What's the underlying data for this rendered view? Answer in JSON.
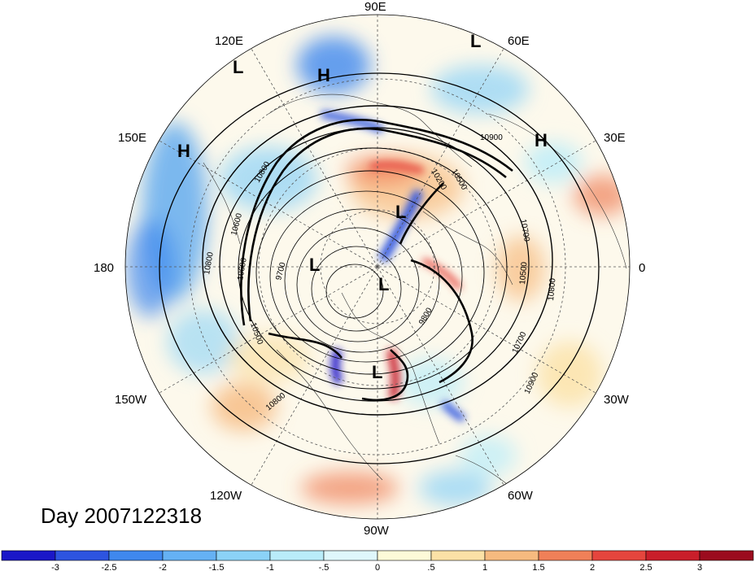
{
  "map": {
    "projection": "polar stereographic (north pole)",
    "longitude_labels": [
      {
        "text": "90E",
        "lon": 90
      },
      {
        "text": "60E",
        "lon": 60
      },
      {
        "text": "30E",
        "lon": 30
      },
      {
        "text": "0",
        "lon": 0
      },
      {
        "text": "30W",
        "lon": -30
      },
      {
        "text": "60W",
        "lon": -60
      },
      {
        "text": "90W",
        "lon": -90
      },
      {
        "text": "120W",
        "lon": -120
      },
      {
        "text": "150W",
        "lon": -150
      },
      {
        "text": "180",
        "lon": 180
      },
      {
        "text": "150E",
        "lon": 150
      },
      {
        "text": "120E",
        "lon": 120
      }
    ],
    "pressure_symbols": [
      "L",
      "H",
      "L",
      "H",
      "H",
      "L",
      "L",
      "L",
      "L"
    ],
    "contour_values": [
      "10900",
      "10800",
      "10700",
      "10600",
      "10500",
      "10200",
      "9800",
      "9700",
      "10800",
      "10800",
      "10500",
      "10600",
      "10900",
      "10700",
      "10800",
      "10500"
    ],
    "colors": {
      "ocean": "#fdfdf6",
      "contour": "#000000",
      "coast": "#333333"
    }
  },
  "caption": "Day 2007122318",
  "colorbar": {
    "ticks": [
      "-3",
      "-2.5",
      "-2",
      "-1.5",
      "-1",
      "-.5",
      "0",
      ".5",
      "1",
      "1.5",
      "2",
      "2.5",
      "3"
    ],
    "colors": [
      "#1a17c8",
      "#2d54e0",
      "#3f88ee",
      "#65b1f4",
      "#8bd2f7",
      "#b9ecf9",
      "#dff7fc",
      "#fdfad8",
      "#fbe1a6",
      "#f6ba7f",
      "#f08058",
      "#e5453d",
      "#c91e2a",
      "#9b0b1e"
    ]
  }
}
